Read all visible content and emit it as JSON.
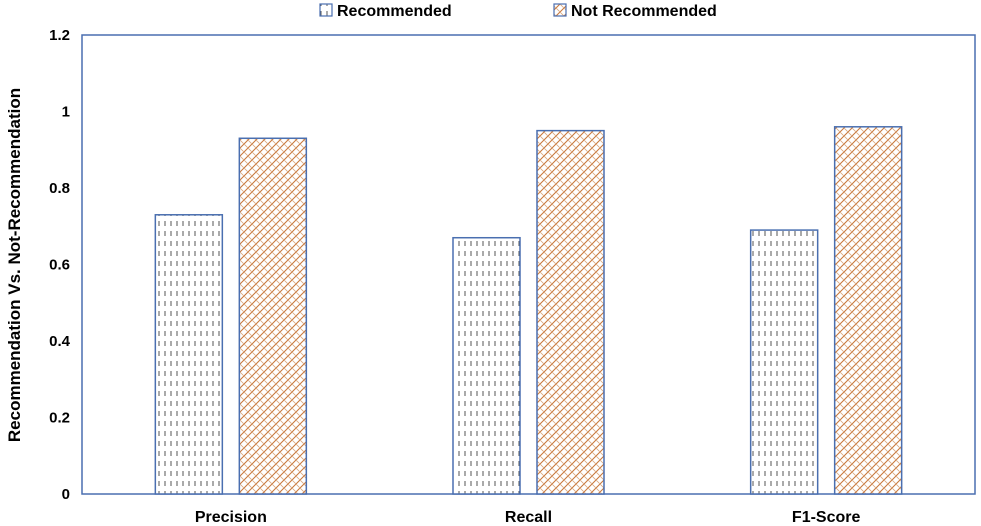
{
  "chart_data": {
    "type": "bar",
    "title": "",
    "xlabel": "",
    "ylabel": "Recommendation Vs. Not-Recommendation",
    "categories": [
      "Precision",
      "Recall",
      "F1-Score"
    ],
    "series": [
      {
        "name": "Recommended",
        "values": [
          0.73,
          0.67,
          0.69
        ],
        "pattern": "dashes",
        "pattern_color": "#555555"
      },
      {
        "name": "Not Recommended",
        "values": [
          0.93,
          0.95,
          0.96
        ],
        "pattern": "weave",
        "pattern_color": "#c8783c"
      }
    ],
    "ylim": [
      0,
      1.2
    ],
    "yticks": [
      "0",
      "0.2",
      "0.4",
      "0.6",
      "0.8",
      "1",
      "1.2"
    ],
    "grid": false,
    "legend_position": "top",
    "colors": {
      "bar_outline": "#4a6fb0",
      "plot_border": "#4a6fb0"
    }
  }
}
